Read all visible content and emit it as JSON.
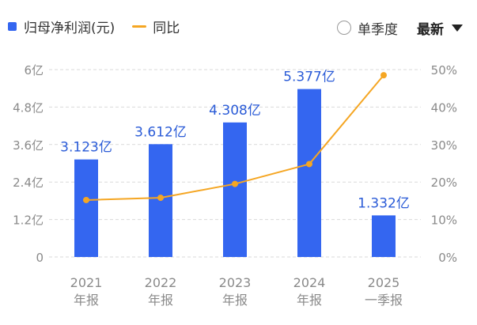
{
  "legend": {
    "bar_label": "归母净利润(元)",
    "line_label": "同比"
  },
  "controls": {
    "toggle_label": "单季度",
    "sort_label": "最新"
  },
  "colors": {
    "bar": "#3466f0",
    "line": "#f5a623",
    "grid": "#d9d9d9",
    "axis_text": "#8a8a8a",
    "label_text": "#2a5bd7"
  },
  "chart_data": {
    "type": "bar",
    "categories": [
      {
        "year": "2021",
        "period": "年报"
      },
      {
        "year": "2022",
        "period": "年报"
      },
      {
        "year": "2023",
        "period": "年报"
      },
      {
        "year": "2024",
        "period": "年报"
      },
      {
        "year": "2025",
        "period": "一季报"
      }
    ],
    "series": [
      {
        "name": "归母净利润(元)",
        "type": "bar",
        "axis": "left",
        "values": [
          3.123,
          3.612,
          4.308,
          5.377,
          1.332
        ],
        "labels": [
          "3.123亿",
          "3.612亿",
          "4.308亿",
          "5.377亿",
          "1.332亿"
        ]
      },
      {
        "name": "同比",
        "type": "line",
        "axis": "right",
        "values": [
          15.2,
          15.8,
          19.5,
          24.8,
          48.5
        ]
      }
    ],
    "left_axis": {
      "ticks": [
        "0",
        "1.2亿",
        "2.4亿",
        "3.6亿",
        "4.8亿",
        "6亿"
      ],
      "range": [
        0,
        6
      ]
    },
    "right_axis": {
      "ticks": [
        "0%",
        "10%",
        "20%",
        "30%",
        "40%",
        "50%"
      ],
      "range": [
        0,
        50
      ]
    },
    "grid": true,
    "legend_position": "top-left"
  }
}
